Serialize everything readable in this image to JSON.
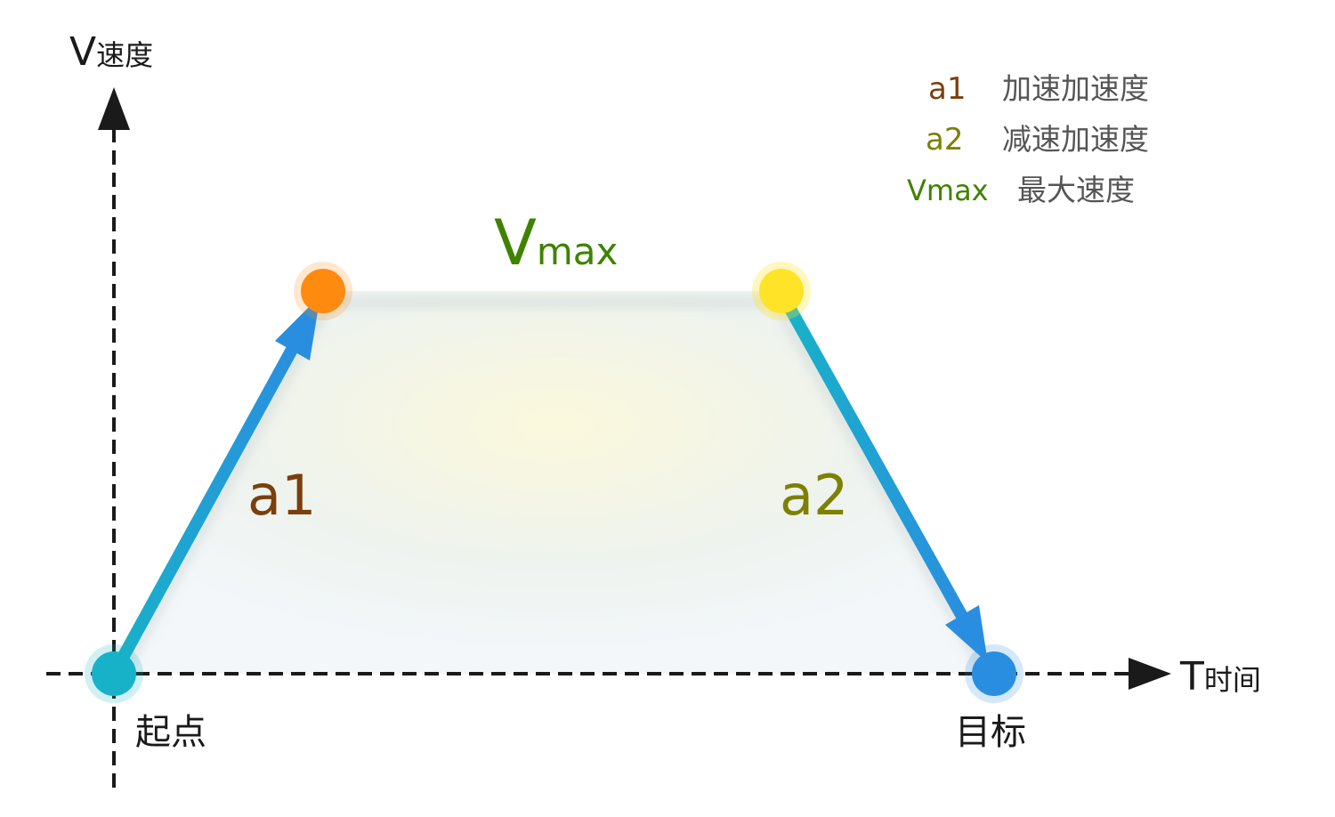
{
  "axes": {
    "y_label_letter": "V",
    "y_label_text": "速度",
    "x_label_letter": "T",
    "x_label_text": "时间"
  },
  "points": {
    "start": "起点",
    "end": "目标"
  },
  "segments": {
    "accel": "a1",
    "vmax_letter": "V",
    "vmax_sub": "max",
    "decel": "a2"
  },
  "legend": [
    {
      "symbol": "a1",
      "desc": "加速加速度",
      "color": "#7a3f0c"
    },
    {
      "symbol": "a2",
      "desc": "减速加速度",
      "color": "#7d8000"
    },
    {
      "symbol": "Vmax",
      "desc": "最大速度",
      "color": "#3f8200"
    }
  ],
  "colors": {
    "accel_arrow": "#2a8ee0",
    "decel_arrow": "#18b2c8",
    "vmax_start": "#ff8a10",
    "vmax_end": "#ffe326",
    "start_point": "#18b2c8",
    "end_point": "#2a8ee0",
    "axis": "#1a1a1a"
  }
}
